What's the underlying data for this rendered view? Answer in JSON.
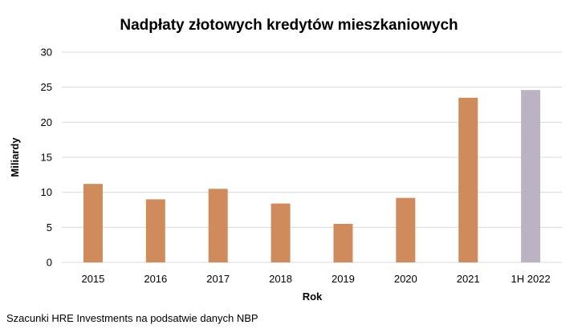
{
  "chart_data": {
    "type": "bar",
    "title": "Nadpłaty złotowych kredytów mieszkaniowych",
    "xlabel": "Rok",
    "ylabel": "Miliardy",
    "categories": [
      "2015",
      "2016",
      "2017",
      "2018",
      "2019",
      "2020",
      "2021",
      "1H 2022"
    ],
    "values": [
      11.2,
      9.0,
      10.5,
      8.4,
      5.5,
      9.2,
      23.5,
      24.6
    ],
    "ylim": [
      0,
      30
    ],
    "yticks": [
      0,
      5,
      10,
      15,
      20,
      25,
      30
    ],
    "grid": true,
    "legend": "none",
    "colors": {
      "default_bar": "#d08b5d",
      "highlight_bar": "#bbb3c3",
      "highlight_index": 7
    }
  },
  "source_note": "Szacunki HRE Investments na podsatwie danych NBP"
}
